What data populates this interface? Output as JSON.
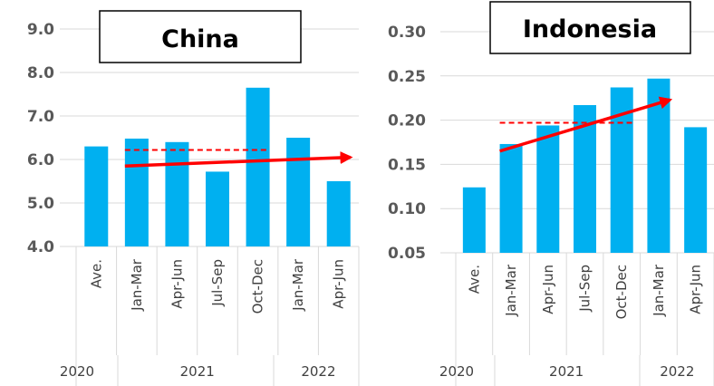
{
  "chart_data": [
    {
      "type": "bar",
      "title": "China",
      "categories": [
        "Ave.",
        "Jan-Mar",
        "Apr-Jun",
        "Jul-Sep",
        "Oct-Dec",
        "Jan-Mar",
        "Apr-Jun"
      ],
      "year_groups": [
        {
          "label": "2020",
          "categories": [
            "Ave."
          ]
        },
        {
          "label": "2021",
          "categories": [
            "Jan-Mar",
            "Apr-Jun",
            "Jul-Sep",
            "Oct-Dec"
          ]
        },
        {
          "label": "2022",
          "categories": [
            "Jan-Mar",
            "Apr-Jun"
          ]
        }
      ],
      "values": [
        6.3,
        6.48,
        6.4,
        5.72,
        7.65,
        6.5,
        5.5
      ],
      "ylim": [
        4.0,
        9.0
      ],
      "yticks": [
        "4.0",
        "5.0",
        "6.0",
        "7.0",
        "8.0",
        "9.0"
      ],
      "grid": true,
      "bar_color": "#00B0F0",
      "annotations": [
        {
          "kind": "dashed-average-line",
          "color": "#FF0000",
          "y": 6.22,
          "from_category": 1,
          "to_category": 4
        },
        {
          "kind": "trend-arrow",
          "color": "#FF0000",
          "y_start": 5.85,
          "y_end": 6.05,
          "from_category": 1,
          "to_category": 6
        }
      ]
    },
    {
      "type": "bar",
      "title": "Indonesia",
      "categories": [
        "Ave.",
        "Jan-Mar",
        "Apr-Jun",
        "Jul-Sep",
        "Oct-Dec",
        "Jan-Mar",
        "Apr-Jun"
      ],
      "year_groups": [
        {
          "label": "2020",
          "categories": [
            "Ave."
          ]
        },
        {
          "label": "2021",
          "categories": [
            "Jan-Mar",
            "Apr-Jun",
            "Jul-Sep",
            "Oct-Dec"
          ]
        },
        {
          "label": "2022",
          "categories": [
            "Jan-Mar",
            "Apr-Jun"
          ]
        }
      ],
      "values": [
        0.124,
        0.173,
        0.194,
        0.217,
        0.237,
        0.247,
        0.192
      ],
      "ylim": [
        0.05,
        0.3
      ],
      "yticks": [
        "0.05",
        "0.10",
        "0.15",
        "0.20",
        "0.25",
        "0.30"
      ],
      "grid": true,
      "bar_color": "#00B0F0",
      "annotations": [
        {
          "kind": "dashed-average-line",
          "color": "#FF0000",
          "y": 0.197,
          "from_category": 1,
          "to_category": 4
        },
        {
          "kind": "trend-arrow",
          "color": "#FF0000",
          "y_start": 0.165,
          "y_end": 0.223,
          "from_category": 1,
          "to_category": 5
        }
      ]
    }
  ]
}
